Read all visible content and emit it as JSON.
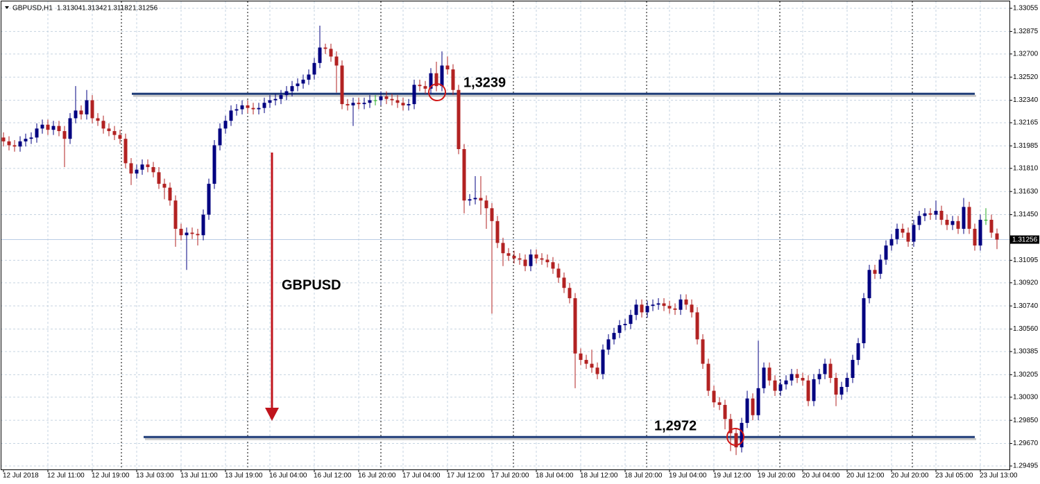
{
  "chart_data": {
    "type": "candlestick",
    "title": "GBPUSD,H1",
    "annotation": "GBPUSD",
    "up_color": "#000080",
    "down_color": "#b22222",
    "doji_color": "#22aa22",
    "level_color": "#1f3c78",
    "grid": true,
    "ylim": [
      1.29468,
      1.33109
    ],
    "yticks": [
      1.33055,
      1.32875,
      {
        "value": 1.327,
        "label": "1.32700"
      },
      {
        "value": 1.3252,
        "label": "1.32520"
      },
      {
        "value": 1.3234,
        "label": "1.32340"
      },
      1.32165,
      1.31985,
      {
        "value": 1.3181,
        "label": "1.31810"
      },
      {
        "value": 1.3163,
        "label": "1.31630"
      },
      {
        "value": 1.3145,
        "label": "1.31450"
      },
      1.31095,
      {
        "value": 1.3092,
        "label": "1.30920"
      },
      {
        "value": 1.3074,
        "label": "1.30740"
      },
      {
        "value": 1.3056,
        "label": "1.30560"
      },
      1.30385,
      1.30205,
      {
        "value": 1.3003,
        "label": "1.30030"
      },
      {
        "value": 1.2985,
        "label": "1.29850"
      },
      {
        "value": 1.2967,
        "label": "1.29670"
      },
      1.29495
    ],
    "levels": [
      {
        "value": 1.3239,
        "label": "1,3239"
      },
      {
        "value": 1.2972,
        "label": "1,2972"
      }
    ],
    "categories": [
      "12 Jul 2018",
      null,
      null,
      null,
      null,
      null,
      null,
      null,
      "12 Jul 11:00",
      null,
      null,
      null,
      null,
      null,
      null,
      null,
      "12 Jul 19:00",
      null,
      null,
      null,
      null,
      null,
      null,
      null,
      "13 Jul 03:00",
      null,
      null,
      null,
      null,
      null,
      null,
      null,
      "13 Jul 11:00",
      null,
      null,
      null,
      null,
      null,
      null,
      null,
      "13 Jul 19:00",
      null,
      null,
      null,
      null,
      null,
      null,
      null,
      "16 Jul 04:00",
      null,
      null,
      null,
      null,
      null,
      null,
      null,
      "16 Jul 12:00",
      null,
      null,
      null,
      null,
      null,
      null,
      null,
      "16 Jul 20:00",
      null,
      null,
      null,
      null,
      null,
      null,
      null,
      "17 Jul 04:00",
      null,
      null,
      null,
      null,
      null,
      null,
      null,
      "17 Jul 12:00",
      null,
      null,
      null,
      null,
      null,
      null,
      null,
      "17 Jul 20:00",
      null,
      null,
      null,
      null,
      null,
      null,
      null,
      "18 Jul 04:00",
      null,
      null,
      null,
      null,
      null,
      null,
      null,
      "18 Jul 12:00",
      null,
      null,
      null,
      null,
      null,
      null,
      null,
      "18 Jul 20:00",
      null,
      null,
      null,
      null,
      null,
      null,
      null,
      "19 Jul 04:00",
      null,
      null,
      null,
      null,
      null,
      null,
      null,
      "19 Jul 12:00",
      null,
      null,
      null,
      null,
      null,
      null,
      null,
      "19 Jul 20:00",
      null,
      null,
      null,
      null,
      null,
      null,
      null,
      "20 Jul 04:00",
      null,
      null,
      null,
      null,
      null,
      null,
      null,
      "20 Jul 12:00",
      null,
      null,
      null,
      null,
      null,
      null,
      null,
      "20 Jul 20:00",
      null,
      null,
      null,
      null,
      null,
      null,
      null,
      "23 Jul 05:00",
      null,
      null,
      null,
      null,
      null,
      null,
      null,
      "23 Jul 13:00",
      null,
      null,
      null
    ],
    "open": [
      1.3205,
      1.3202,
      1.3199,
      1.3198,
      1.3202,
      1.3204,
      1.3205,
      1.3212,
      1.3215,
      1.3211,
      1.3214,
      1.321,
      1.3204,
      1.322,
      1.3226,
      1.3223,
      1.3234,
      1.322,
      1.3218,
      1.3212,
      1.321,
      1.3207,
      1.3204,
      1.3185,
      1.3177,
      1.318,
      1.3184,
      1.3182,
      1.3178,
      1.3169,
      1.3166,
      1.3156,
      1.3134,
      1.3129,
      1.3131,
      1.313,
      1.3129,
      1.3145,
      1.3169,
      1.3199,
      1.3212,
      1.3218,
      1.3226,
      1.3227,
      1.323,
      1.3228,
      1.3227,
      1.3228,
      1.3232,
      1.3234,
      1.3235,
      1.3238,
      1.3241,
      1.3245,
      1.3247,
      1.325,
      1.3254,
      1.3263,
      1.3275,
      1.3274,
      1.3268,
      1.3261,
      1.3231,
      1.323,
      1.3232,
      1.3231,
      1.3232,
      1.3234,
      1.3234,
      1.3237,
      1.3235,
      1.3234,
      1.3232,
      1.323,
      1.3231,
      1.3246,
      1.3245,
      1.3243,
      1.3255,
      1.3245,
      1.3261,
      1.3258,
      1.3242,
      1.3196,
      1.3156,
      1.3157,
      1.3158,
      1.3156,
      1.315,
      1.314,
      1.3123,
      1.3115,
      1.3113,
      1.3111,
      1.311,
      1.3105,
      1.3114,
      1.3111,
      1.311,
      1.3108,
      1.3103,
      1.3096,
      1.3088,
      1.308,
      1.3037,
      1.3032,
      1.3029,
      1.3026,
      1.3021,
      1.304,
      1.3048,
      1.3053,
      1.3059,
      1.306,
      1.3067,
      1.3075,
      1.3069,
      1.3074,
      1.3075,
      1.3076,
      1.3074,
      1.3072,
      1.3071,
      1.3079,
      1.3075,
      1.3069,
      1.3048,
      1.3029,
      1.3008,
      1.2999,
      1.2997,
      1.2986,
      1.2975,
      1.2964,
      1.2983,
      1.3002,
      1.2989,
      1.301,
      1.3026,
      1.3016,
      1.3008,
      1.3013,
      1.3016,
      1.3021,
      1.3018,
      1.3016,
      1.3,
      1.3017,
      1.3021,
      1.3029,
      1.3018,
      1.3005,
      1.3011,
      1.3018,
      1.3032,
      1.3045,
      1.308,
      1.3102,
      1.3099,
      1.311,
      1.3121,
      1.3126,
      1.3134,
      1.3131,
      1.3124,
      1.3137,
      1.3144,
      1.3146,
      1.3145,
      1.3148,
      1.3141,
      1.3137,
      1.314,
      1.3134,
      1.3151,
      1.3134,
      1.3121,
      1.3141,
      1.3141,
      1.31304
    ],
    "high": [
      1.3209,
      1.3206,
      1.3203,
      1.3206,
      1.3208,
      1.3209,
      1.3216,
      1.3219,
      1.3219,
      1.3218,
      1.3218,
      1.3214,
      1.3224,
      1.3245,
      1.323,
      1.3242,
      1.3238,
      1.3224,
      1.3222,
      1.3216,
      1.3214,
      1.3211,
      1.3208,
      1.3189,
      1.3184,
      1.3188,
      1.3188,
      1.3186,
      1.3182,
      1.3173,
      1.317,
      1.316,
      1.3138,
      1.3135,
      1.3135,
      1.3134,
      1.3149,
      1.3173,
      1.3203,
      1.3216,
      1.3222,
      1.323,
      1.3231,
      1.3234,
      1.3234,
      1.3232,
      1.3232,
      1.3236,
      1.3238,
      1.3239,
      1.3242,
      1.3245,
      1.3249,
      1.3251,
      1.3254,
      1.3258,
      1.3267,
      1.3292,
      1.3278,
      1.3278,
      1.3272,
      1.3265,
      1.3235,
      1.3236,
      1.3236,
      1.3236,
      1.3238,
      1.3238,
      1.3241,
      1.3241,
      1.3239,
      1.3238,
      1.3236,
      1.3235,
      1.325,
      1.325,
      1.3249,
      1.3259,
      1.3264,
      1.3272,
      1.3268,
      1.3262,
      1.3246,
      1.32,
      1.3161,
      1.3175,
      1.3175,
      1.316,
      1.3154,
      1.3144,
      1.3127,
      1.3119,
      1.3117,
      1.3115,
      1.3114,
      1.3118,
      1.3118,
      1.3115,
      1.3114,
      1.3112,
      1.3107,
      1.31,
      1.3092,
      1.3084,
      1.3041,
      1.3036,
      1.304,
      1.303,
      1.3044,
      1.3052,
      1.3057,
      1.3063,
      1.3064,
      1.3071,
      1.3079,
      1.3079,
      1.3078,
      1.3079,
      1.308,
      1.308,
      1.3078,
      1.3076,
      1.3083,
      1.3083,
      1.3079,
      1.3073,
      1.3052,
      1.3033,
      1.3012,
      1.3003,
      1.3001,
      1.299,
      1.2979,
      1.2987,
      1.3008,
      1.3006,
      1.3047,
      1.303,
      1.303,
      1.302,
      1.3017,
      1.302,
      1.3025,
      1.3025,
      1.3022,
      1.302,
      1.3021,
      1.3025,
      1.3033,
      1.3033,
      1.3022,
      1.3015,
      1.3022,
      1.3036,
      1.3049,
      1.3084,
      1.3106,
      1.3106,
      1.3114,
      1.3125,
      1.313,
      1.3138,
      1.3138,
      1.3135,
      1.3141,
      1.3148,
      1.315,
      1.315,
      1.3156,
      1.3152,
      1.3145,
      1.3144,
      1.3144,
      1.3158,
      1.3155,
      1.3138,
      1.3145,
      1.315,
      1.3145,
      1.31342
    ],
    "low": [
      1.3198,
      1.3195,
      1.3194,
      1.3194,
      1.3198,
      1.32,
      1.3201,
      1.3208,
      1.3207,
      1.3207,
      1.3206,
      1.3182,
      1.32,
      1.3216,
      1.3219,
      1.3219,
      1.3216,
      1.3214,
      1.3208,
      1.3206,
      1.3203,
      1.32,
      1.3181,
      1.3168,
      1.3173,
      1.3176,
      1.3178,
      1.3174,
      1.3165,
      1.3157,
      1.3152,
      1.312,
      1.3125,
      1.3102,
      1.3126,
      1.3121,
      1.3125,
      1.3141,
      1.3165,
      1.3195,
      1.3208,
      1.3214,
      1.3222,
      1.3223,
      1.3224,
      1.3223,
      1.3223,
      1.3224,
      1.3228,
      1.323,
      1.3231,
      1.3234,
      1.3237,
      1.3241,
      1.3243,
      1.3246,
      1.325,
      1.3259,
      1.327,
      1.3264,
      1.324,
      1.3227,
      1.3226,
      1.3214,
      1.3227,
      1.3227,
      1.3228,
      1.323,
      1.323,
      1.3231,
      1.323,
      1.3228,
      1.3226,
      1.3226,
      1.3227,
      1.3241,
      1.3239,
      1.3239,
      1.3241,
      1.3241,
      1.3254,
      1.3238,
      1.3192,
      1.3146,
      1.3152,
      1.3153,
      1.3145,
      1.3134,
      1.3068,
      1.3119,
      1.3105,
      1.3109,
      1.3107,
      1.3106,
      1.3101,
      1.3101,
      1.3107,
      1.3106,
      1.3104,
      1.3099,
      1.3092,
      1.3084,
      1.3076,
      1.301,
      1.3028,
      1.3025,
      1.3022,
      1.3017,
      1.3017,
      1.3036,
      1.3044,
      1.3049,
      1.3055,
      1.3056,
      1.3063,
      1.3065,
      1.3065,
      1.307,
      1.3071,
      1.307,
      1.3068,
      1.3067,
      1.3067,
      1.3071,
      1.3065,
      1.3044,
      1.3025,
      1.3004,
      1.2995,
      1.2993,
      1.2978,
      1.2961,
      1.2958,
      1.296,
      1.2979,
      1.2985,
      1.2985,
      1.3006,
      1.3012,
      1.3004,
      1.3004,
      1.3009,
      1.3012,
      1.3014,
      1.3012,
      1.2996,
      1.2996,
      1.3013,
      1.3017,
      1.3014,
      1.2996,
      1.3001,
      1.3007,
      1.3014,
      1.3028,
      1.3041,
      1.3076,
      1.3095,
      1.3095,
      1.3106,
      1.3117,
      1.3122,
      1.3127,
      1.312,
      1.312,
      1.3133,
      1.314,
      1.3141,
      1.3141,
      1.3137,
      1.3133,
      1.3133,
      1.313,
      1.313,
      1.313,
      1.3117,
      1.3117,
      1.3137,
      1.3127,
      1.31182
    ],
    "close": [
      1.3202,
      1.3199,
      1.3198,
      1.3202,
      1.3204,
      1.3205,
      1.3212,
      1.3215,
      1.3211,
      1.3214,
      1.321,
      1.3204,
      1.322,
      1.3226,
      1.3223,
      1.3234,
      1.322,
      1.3218,
      1.3212,
      1.321,
      1.3207,
      1.3204,
      1.3185,
      1.3177,
      1.318,
      1.3184,
      1.3182,
      1.3178,
      1.3169,
      1.3166,
      1.3156,
      1.3134,
      1.3129,
      1.3131,
      1.313,
      1.3129,
      1.3145,
      1.3169,
      1.3199,
      1.3212,
      1.3218,
      1.3226,
      1.3227,
      1.323,
      1.3228,
      1.3227,
      1.3228,
      1.3232,
      1.3234,
      1.3235,
      1.3238,
      1.3241,
      1.3245,
      1.3247,
      1.325,
      1.3254,
      1.3263,
      1.3275,
      1.3274,
      1.3268,
      1.3261,
      1.3231,
      1.323,
      1.3232,
      1.3231,
      1.3232,
      1.3234,
      1.3234,
      1.3237,
      1.3235,
      1.3234,
      1.3232,
      1.323,
      1.3231,
      1.3246,
      1.3245,
      1.3243,
      1.3255,
      1.3245,
      1.3261,
      1.3258,
      1.3242,
      1.3196,
      1.3156,
      1.3157,
      1.3158,
      1.3156,
      1.315,
      1.314,
      1.3123,
      1.3115,
      1.3113,
      1.3111,
      1.311,
      1.3105,
      1.3114,
      1.3111,
      1.311,
      1.3108,
      1.3103,
      1.3096,
      1.3088,
      1.308,
      1.3037,
      1.3032,
      1.3029,
      1.3026,
      1.3021,
      1.304,
      1.3048,
      1.3053,
      1.3059,
      1.306,
      1.3067,
      1.3075,
      1.3069,
      1.3074,
      1.3075,
      1.3076,
      1.3074,
      1.3072,
      1.3071,
      1.3079,
      1.3075,
      1.3069,
      1.3048,
      1.3029,
      1.3008,
      1.2999,
      1.2997,
      1.2986,
      1.2975,
      1.2964,
      1.2983,
      1.3002,
      1.2989,
      1.301,
      1.3026,
      1.3016,
      1.3008,
      1.3013,
      1.3016,
      1.3021,
      1.3018,
      1.3016,
      1.3,
      1.3017,
      1.3021,
      1.3029,
      1.3018,
      1.3005,
      1.3011,
      1.3018,
      1.3032,
      1.3045,
      1.308,
      1.3102,
      1.3099,
      1.311,
      1.3121,
      1.3126,
      1.3134,
      1.3131,
      1.3124,
      1.3137,
      1.3144,
      1.3146,
      1.3145,
      1.3148,
      1.3141,
      1.3137,
      1.314,
      1.3134,
      1.3151,
      1.3134,
      1.3121,
      1.3141,
      1.3141,
      1.3131,
      1.31256
    ]
  }
}
